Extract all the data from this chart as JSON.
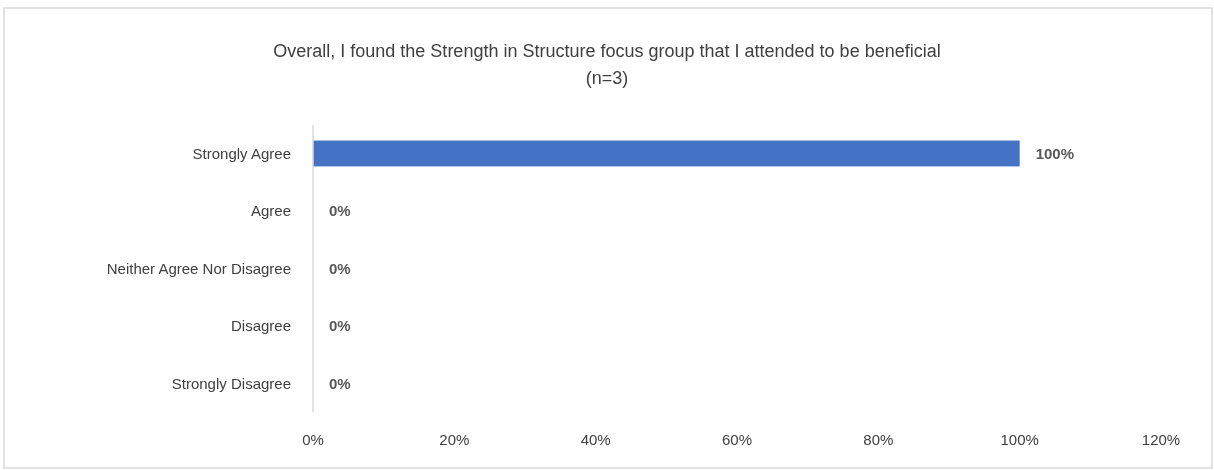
{
  "chart_data": {
    "type": "bar",
    "orientation": "horizontal",
    "title": "Overall, I found the Strength in Structure focus group that I attended to be beneficial\n(n=3)",
    "categories": [
      "Strongly Agree",
      "Agree",
      "Neither Agree Nor Disagree",
      "Disagree",
      "Strongly Disagree"
    ],
    "values": [
      100,
      0,
      0,
      0,
      0
    ],
    "color": "#4472c4",
    "value_labels": [
      "100%",
      "0%",
      "0%",
      "0%",
      "0%"
    ],
    "xlim": [
      0,
      120
    ],
    "xticks": [
      {
        "value": 0,
        "label": "0%"
      },
      {
        "value": 20,
        "label": "20%"
      },
      {
        "value": 40,
        "label": "40%"
      },
      {
        "value": 60,
        "label": "60%"
      },
      {
        "value": 80,
        "label": "80%"
      },
      {
        "value": 100,
        "label": "100%"
      },
      {
        "value": 120,
        "label": "120%"
      }
    ],
    "grid": false
  }
}
